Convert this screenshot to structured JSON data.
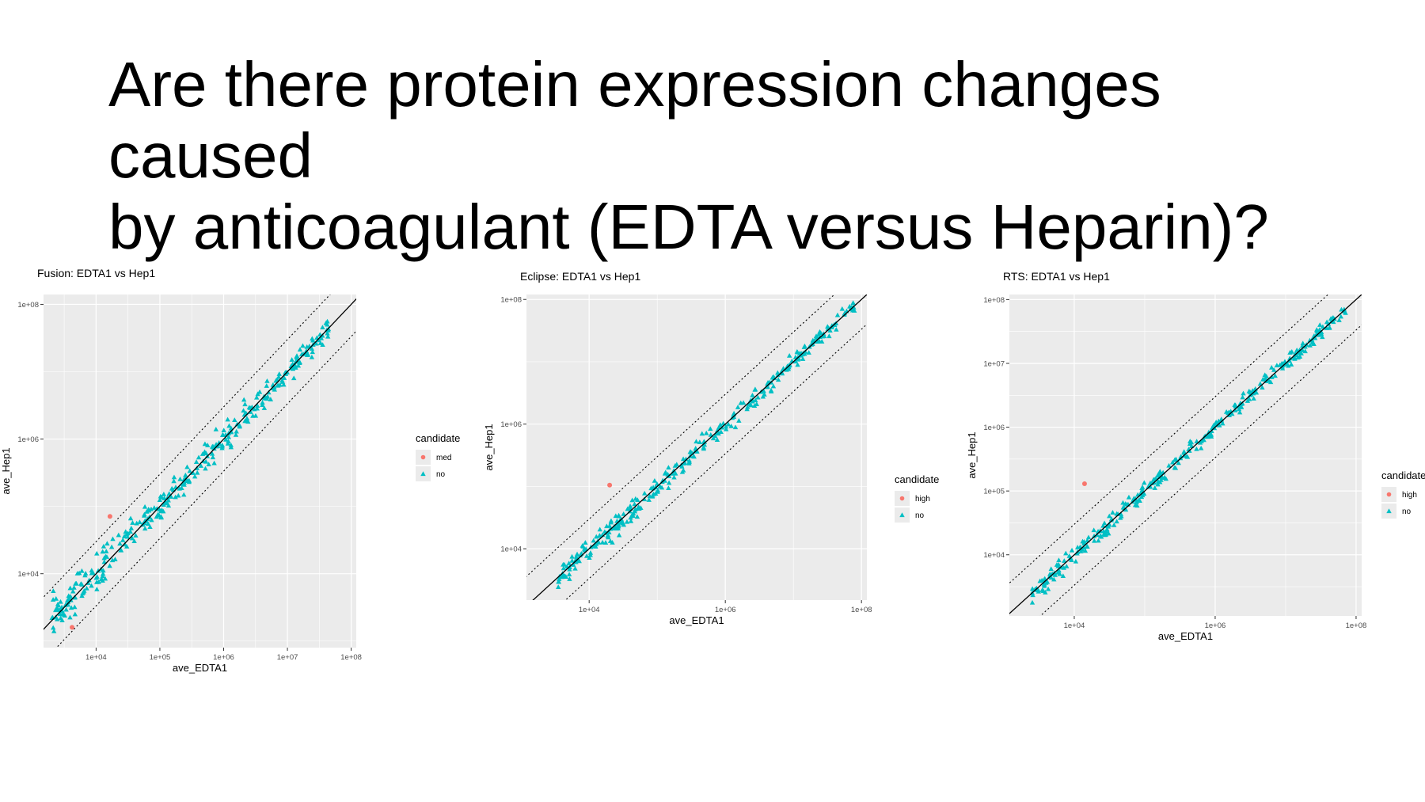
{
  "slide": {
    "title_lines": [
      "Are there protein expression changes caused",
      "by anticoagulant (EDTA versus Heparin)?"
    ]
  },
  "colors": {
    "panel_bg": "#EBEBEB",
    "grid": "#FFFFFF",
    "no": "#00BFC4",
    "candidate": "#F8766D",
    "line": "#000000"
  },
  "chart_data": [
    {
      "type": "scatter",
      "title": "Fusion: EDTA1 vs Hep1",
      "xlabel": "ave_EDTA1",
      "ylabel": "ave_Hep1",
      "xscale": "log10",
      "yscale": "log10",
      "xlim": [
        1500,
        120000000
      ],
      "ylim": [
        800,
        140000000
      ],
      "xticks": [
        10000,
        100000,
        1000000,
        10000000,
        100000000
      ],
      "xtick_labels": [
        "1e+04",
        "1e+05",
        "1e+06",
        "1e+07",
        "1e+08"
      ],
      "yticks": [
        10000,
        1000000,
        100000000
      ],
      "ytick_labels": [
        "1e+04",
        "1e+06",
        "1e+08"
      ],
      "legend": {
        "title": "candidate",
        "entries": [
          "med",
          "no"
        ],
        "position": "right"
      },
      "grid": true,
      "reference_lines": {
        "identity": true,
        "band_factor": 3
      },
      "series": [
        {
          "name": "no",
          "shape": "triangle",
          "x_range": [
            2000,
            45000000
          ],
          "spread": 0.28,
          "count": 340
        },
        {
          "name": "med",
          "shape": "circle",
          "points": [
            [
              16500,
              71000
            ],
            [
              4200,
              1600
            ]
          ]
        }
      ]
    },
    {
      "type": "scatter",
      "title": "Eclipse: EDTA1 vs Hep1",
      "xlabel": "ave_EDTA1",
      "ylabel": "ave_Hep1",
      "xscale": "log10",
      "yscale": "log10",
      "xlim": [
        1200,
        120000000
      ],
      "ylim": [
        1500,
        120000000
      ],
      "xticks": [
        10000,
        1000000,
        100000000
      ],
      "xtick_labels": [
        "1e+04",
        "1e+06",
        "1e+08"
      ],
      "yticks": [
        10000,
        1000000,
        100000000
      ],
      "ytick_labels": [
        "1e+04",
        "1e+06",
        "1e+08"
      ],
      "legend": {
        "title": "candidate",
        "entries": [
          "high",
          "no"
        ],
        "position": "right"
      },
      "grid": true,
      "reference_lines": {
        "identity": true,
        "band_factor": 3
      },
      "series": [
        {
          "name": "no",
          "shape": "triangle",
          "x_range": [
            3500,
            80000000
          ],
          "spread": 0.2,
          "count": 320
        },
        {
          "name": "high",
          "shape": "circle",
          "points": [
            [
              20000,
              105000
            ]
          ]
        }
      ]
    },
    {
      "type": "scatter",
      "title": "RTS: EDTA1 vs Hep1",
      "xlabel": "ave_EDTA1",
      "ylabel": "ave_Hep1",
      "xscale": "log10",
      "yscale": "log10",
      "xlim": [
        1200,
        120000000
      ],
      "ylim": [
        1100,
        120000000
      ],
      "xticks": [
        10000,
        1000000,
        100000000
      ],
      "xtick_labels": [
        "1e+04",
        "1e+06",
        "1e+08"
      ],
      "yticks": [
        10000,
        100000,
        1000000,
        10000000,
        100000000
      ],
      "ytick_labels": [
        "1e+04",
        "1e+05",
        "1e+06",
        "1e+07",
        "1e+08"
      ],
      "legend": {
        "title": "candidate",
        "entries": [
          "high",
          "no"
        ],
        "position": "right"
      },
      "grid": true,
      "reference_lines": {
        "identity": true,
        "band_factor": 3
      },
      "series": [
        {
          "name": "no",
          "shape": "triangle",
          "x_range": [
            2500,
            80000000
          ],
          "spread": 0.16,
          "count": 330
        },
        {
          "name": "high",
          "shape": "circle",
          "points": [
            [
              14000,
              130000
            ]
          ]
        }
      ]
    }
  ]
}
